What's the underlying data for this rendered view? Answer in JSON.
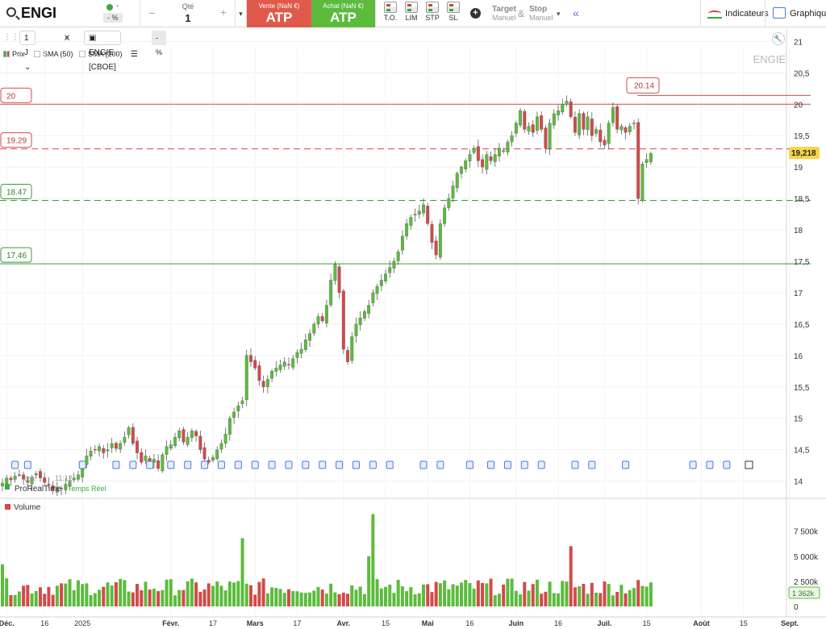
{
  "header": {
    "ticker": "ENGI",
    "change_value": "-",
    "change_pct": "- %",
    "qty_label": "Qté",
    "qty_value": "1",
    "qty_minus": "−",
    "qty_plus": "+",
    "qty_dropdown": "▾",
    "sell_label": "Vente (NaN €)",
    "sell_value": "ATP",
    "buy_label": "Achat (NaN €)",
    "buy_value": "ATP",
    "order_types": [
      "T.O.",
      "LIM",
      "STP",
      "SL"
    ],
    "target_label": "Target",
    "target_sub": "Manuel",
    "amp": "&",
    "stop_label": "Stop",
    "stop_sub": "Manuel",
    "more_chevron": "▾",
    "collapse_chevron": "«",
    "indicators_label": "Indicateurs",
    "chart_label": "Graphique",
    "colors": {
      "sell": "#e05a4c",
      "buy": "#5cbb3d",
      "accent": "#4a7bd6"
    }
  },
  "toolbar": {
    "timeframe": "1 J",
    "instrument": "ENGIE [CBOE]",
    "pct_badge": "- %",
    "legend": [
      "Prix",
      "SMA (50)",
      "SMA (200)"
    ],
    "watermark": "ENGIE",
    "last_tick": "tick",
    "last_time": "11:12",
    "feed": "ProRealTime",
    "feed_mode": "Temps Réel",
    "volume_label": "Volume",
    "icons": [
      "magnify-icon",
      "wrench-icon",
      "list-icon",
      "info-icon"
    ]
  },
  "chart_data": {
    "type": "candlestick",
    "price_axis": {
      "ylim": [
        13.7,
        21.3
      ],
      "ticks": [
        14,
        14.5,
        15,
        15.5,
        16,
        16.5,
        17,
        17.5,
        18,
        18.5,
        19,
        19.5,
        20,
        20.5,
        21
      ],
      "tick_labels": [
        "14",
        "14,5",
        "15",
        "15,5",
        "16",
        "16,5",
        "17",
        "17,5",
        "18",
        "18,5",
        "19",
        "19,5",
        "20",
        "20,5",
        "21"
      ]
    },
    "x_labels": [
      {
        "label": "Déc.",
        "bar": 1
      },
      {
        "label": "16",
        "bar": 10
      },
      {
        "label": "2025",
        "bar": 19
      },
      {
        "label": "Févr.",
        "bar": 40
      },
      {
        "label": "17",
        "bar": 50
      },
      {
        "label": "Mars",
        "bar": 60
      },
      {
        "label": "17",
        "bar": 70
      },
      {
        "label": "Avr.",
        "bar": 81
      },
      {
        "label": "15",
        "bar": 91
      },
      {
        "label": "Mai",
        "bar": 101
      },
      {
        "label": "16",
        "bar": 111
      },
      {
        "label": "Juin",
        "bar": 122
      },
      {
        "label": "16",
        "bar": 132
      },
      {
        "label": "Juil.",
        "bar": 143
      },
      {
        "label": "15",
        "bar": 153
      },
      {
        "label": "Août",
        "bar": 166
      },
      {
        "label": "15",
        "bar": 176
      },
      {
        "label": "Sept.",
        "bar": 187
      }
    ],
    "last_price": "19,218",
    "levels": [
      {
        "label": "20.14",
        "value": 20.14,
        "color": "#d24a4a",
        "style": "solid"
      },
      {
        "label": "20",
        "value": 20.0,
        "color": "#d24a4a",
        "style": "solid"
      },
      {
        "label": "19.29",
        "value": 19.29,
        "color": "#d24a4a",
        "style": "dashed"
      },
      {
        "label": "18.47",
        "value": 18.47,
        "color": "#3a9a3a",
        "style": "dashed"
      },
      {
        "label": "17.46",
        "value": 17.46,
        "color": "#3a9a3a",
        "style": "solid"
      }
    ],
    "closes": [
      13.97,
      14.05,
      14.02,
      14.08,
      14.1,
      14.03,
      13.98,
      14.06,
      14.12,
      14.05,
      13.98,
      13.95,
      13.85,
      13.9,
      13.88,
      13.95,
      14.0,
      14.05,
      14.1,
      14.25,
      14.4,
      14.48,
      14.5,
      14.55,
      14.45,
      14.5,
      14.6,
      14.52,
      14.6,
      14.7,
      14.85,
      14.6,
      14.45,
      14.3,
      14.4,
      14.28,
      14.35,
      14.2,
      14.42,
      14.55,
      14.58,
      14.7,
      14.8,
      14.62,
      14.7,
      14.8,
      14.72,
      14.5,
      14.35,
      14.3,
      14.38,
      14.5,
      14.6,
      14.75,
      15.0,
      15.1,
      15.2,
      15.28,
      16.0,
      15.9,
      15.8,
      15.6,
      15.5,
      15.62,
      15.75,
      15.8,
      15.85,
      15.9,
      15.85,
      15.95,
      16.05,
      16.1,
      16.25,
      16.35,
      16.5,
      16.62,
      16.55,
      16.8,
      17.2,
      17.45,
      17.0,
      16.1,
      15.9,
      16.3,
      16.5,
      16.6,
      16.7,
      16.8,
      17.0,
      17.1,
      17.2,
      17.3,
      17.4,
      17.5,
      17.65,
      17.9,
      18.1,
      18.2,
      18.25,
      18.3,
      18.4,
      18.1,
      17.8,
      17.6,
      18.1,
      18.35,
      18.5,
      18.7,
      18.9,
      19.0,
      19.1,
      19.2,
      19.3,
      19.1,
      19.0,
      19.2,
      19.1,
      19.2,
      19.3,
      19.25,
      19.4,
      19.5,
      19.7,
      19.9,
      19.6,
      19.65,
      19.55,
      19.8,
      19.6,
      19.3,
      19.7,
      19.85,
      19.9,
      20.0,
      20.05,
      19.8,
      19.55,
      19.85,
      19.6,
      19.8,
      19.5,
      19.6,
      19.4,
      19.35,
      19.7,
      19.95,
      19.6,
      19.65,
      19.55,
      19.65,
      19.7,
      18.5,
      19.05,
      19.12,
      19.218
    ],
    "volume_axis": {
      "ylim": [
        0,
        9000
      ],
      "ticks": [
        0,
        2500,
        5000,
        7500
      ],
      "tick_labels": [
        "0",
        "2 500k",
        "5 000k",
        "7 500k"
      ]
    },
    "last_volume": "1 362k",
    "series": [
      {
        "name": "Prix",
        "color_up": "#5cbb3d",
        "color_down": "#d24a4a"
      }
    ]
  }
}
